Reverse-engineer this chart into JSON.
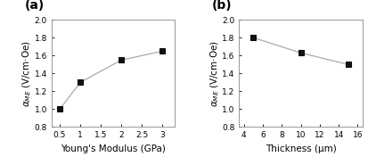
{
  "panel_a": {
    "x": [
      0.5,
      1.0,
      2.0,
      3.0
    ],
    "y": [
      1.0,
      1.3,
      1.55,
      1.65
    ],
    "xlabel": "Young's Modulus (GPa)",
    "ylabel": "$\\alpha_{ME}$ (V/cm·Oe)",
    "xlim": [
      0.3,
      3.3
    ],
    "ylim": [
      0.8,
      2.0
    ],
    "xticks": [
      0.5,
      1.0,
      1.5,
      2.0,
      2.5,
      3.0
    ],
    "yticks": [
      0.8,
      1.0,
      1.2,
      1.4,
      1.6,
      1.8,
      2.0
    ],
    "label": "(a)"
  },
  "panel_b": {
    "x": [
      5,
      10,
      15
    ],
    "y": [
      1.8,
      1.63,
      1.5
    ],
    "xlabel": "Thickness (μm)",
    "ylabel": "$\\alpha_{ME}$ (V/cm·Oe)",
    "xlim": [
      3.5,
      16.5
    ],
    "ylim": [
      0.8,
      2.0
    ],
    "xticks": [
      4,
      6,
      8,
      10,
      12,
      14,
      16
    ],
    "yticks": [
      0.8,
      1.0,
      1.2,
      1.4,
      1.6,
      1.8,
      2.0
    ],
    "label": "(b)"
  },
  "line_color": "#aaaaaa",
  "marker": "s",
  "marker_color": "#111111",
  "marker_size": 4,
  "line_style": "-",
  "line_width": 0.9,
  "background_color": "#ffffff",
  "label_fontsize": 7.5,
  "tick_fontsize": 6.5,
  "panel_label_fontsize": 10
}
